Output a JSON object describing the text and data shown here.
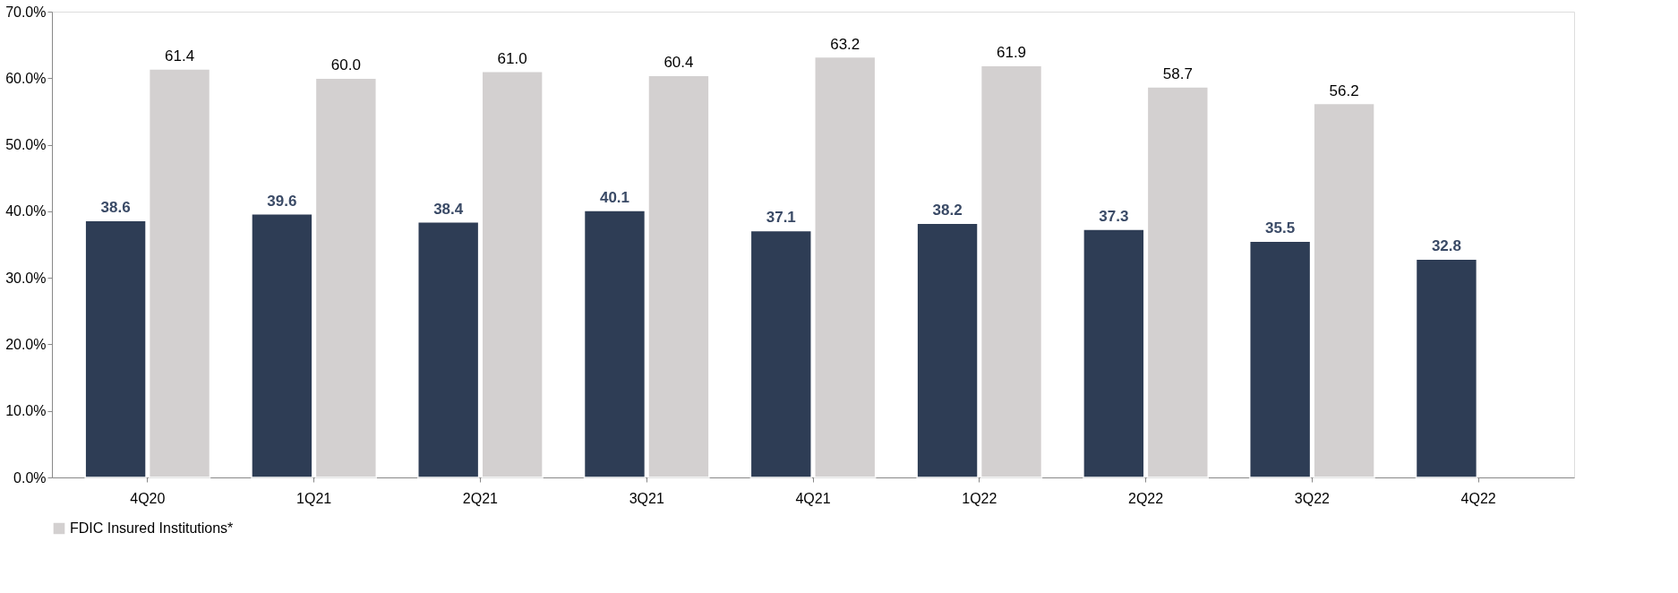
{
  "chart_data": {
    "type": "bar",
    "categories": [
      "4Q20",
      "1Q21",
      "2Q21",
      "3Q21",
      "4Q21",
      "1Q22",
      "2Q22",
      "3Q22",
      "4Q22"
    ],
    "series": [
      {
        "color": "#2e3d55",
        "values": [
          38.6,
          39.6,
          38.4,
          40.1,
          37.1,
          38.2,
          37.3,
          35.5,
          32.8
        ],
        "value_labels": [
          "38.6",
          "39.6",
          "38.4",
          "40.1",
          "37.1",
          "38.2",
          "37.3",
          "35.5",
          "32.8"
        ]
      },
      {
        "name": "FDIC Insured Institutions*",
        "color": "#d3d0d0",
        "values": [
          61.4,
          60.0,
          61.0,
          60.4,
          63.2,
          61.9,
          58.7,
          56.2,
          null
        ],
        "value_labels": [
          "61.4",
          "60.0",
          "61.0",
          "60.4",
          "63.2",
          "61.9",
          "58.7",
          "56.2",
          null
        ]
      }
    ],
    "ylim": [
      0,
      70
    ],
    "yticks": [
      {
        "value": 0,
        "label": "0.0%"
      },
      {
        "value": 10,
        "label": "10.0%"
      },
      {
        "value": 20,
        "label": "20.0%"
      },
      {
        "value": 30,
        "label": "30.0%"
      },
      {
        "value": 40,
        "label": "40.0%"
      },
      {
        "value": 50,
        "label": "50.0%"
      },
      {
        "value": 60,
        "label": "60.0%"
      },
      {
        "value": 70,
        "label": "70.0%"
      }
    ],
    "legend": "bottom"
  }
}
